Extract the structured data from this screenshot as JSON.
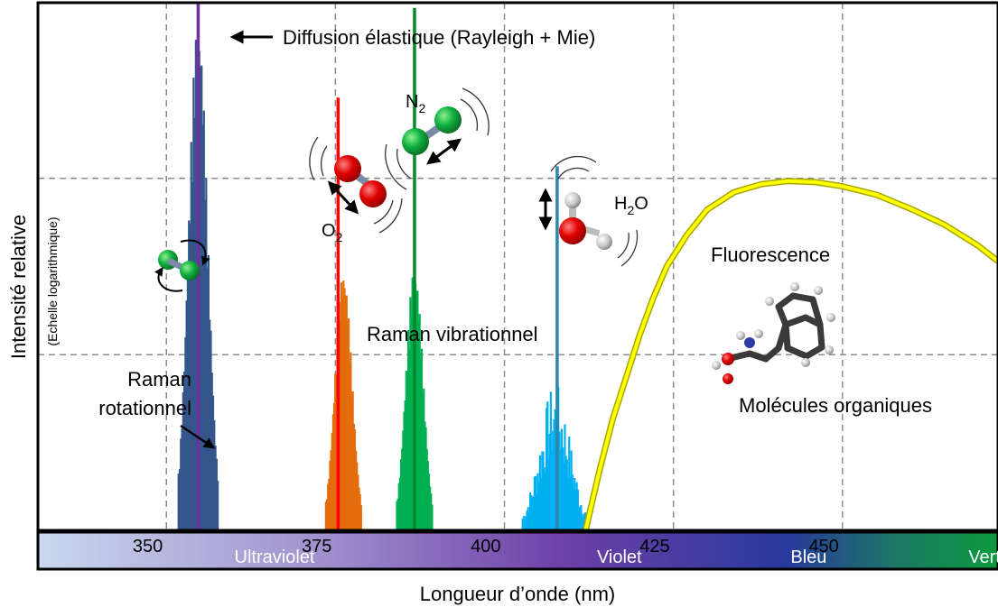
{
  "chart_data": {
    "type": "area",
    "xlabel": "Longueur d’onde (nm)",
    "ylabel": "Intensité relative",
    "ylabel_sub": "(Echelle logarithmique)",
    "x_scale": "linear",
    "y_scale": "log",
    "xlim": [
      331,
      473
    ],
    "x_ticks": [
      350,
      375,
      400,
      425,
      450
    ],
    "x_tick_labels": [
      "350",
      "375",
      "400",
      "425",
      "450"
    ],
    "grid": true,
    "spectral_bands": [
      {
        "label": "Ultraviolet",
        "x": 366
      },
      {
        "label": "Violet",
        "x": 417
      },
      {
        "label": "Bleu",
        "x": 445
      },
      {
        "label": "Vert",
        "x": 471
      }
    ],
    "band_colors": [
      "#c9d8ee",
      "#9f8fcd",
      "#6d3fa8",
      "#283a9c",
      "#1b7a63",
      "#0a9a3c"
    ],
    "series": [
      {
        "name": "Raman rotationnel",
        "type": "band",
        "center": 354.7,
        "halfwidth": 2.9,
        "peak_frac": 0.97,
        "color": "#34568a"
      },
      {
        "name": "Diffusion élastique (Rayleigh + Mie)",
        "type": "line",
        "x": 354.7,
        "peak_frac": 1.0,
        "color": "#7030a0"
      },
      {
        "name": "O2 Raman",
        "type": "band",
        "center": 376.2,
        "halfwidth": 2.6,
        "peak_frac": 0.49,
        "color": "#e46c0a"
      },
      {
        "name": "O2",
        "type": "line",
        "x": 375.4,
        "peak_frac": 0.82,
        "color": "#ff0000"
      },
      {
        "name": "N2 Raman",
        "type": "band",
        "center": 386.7,
        "halfwidth": 2.6,
        "peak_frac": 0.5,
        "color": "#00b050"
      },
      {
        "name": "N2",
        "type": "line",
        "x": 386.7,
        "peak_frac": 0.99,
        "color": "#00882a"
      },
      {
        "name": "H2O Raman",
        "type": "band",
        "center": 407.5,
        "halfwidth": 4.8,
        "peak_frac": 0.28,
        "color": "#00b0f0"
      },
      {
        "name": "H2O",
        "type": "line",
        "x": 407.8,
        "peak_frac": 0.69,
        "color": "#2e86a8"
      },
      {
        "name": "Fluorescence",
        "type": "curve",
        "x": [
          412.0,
          414,
          416,
          418,
          420,
          422,
          424,
          427,
          430,
          434,
          438,
          442,
          446,
          450,
          455,
          460,
          465,
          470,
          473
        ],
        "y_frac": [
          0.0,
          0.11,
          0.21,
          0.29,
          0.37,
          0.44,
          0.5,
          0.56,
          0.608,
          0.641,
          0.656,
          0.662,
          0.66,
          0.652,
          0.636,
          0.61,
          0.58,
          0.54,
          0.51
        ],
        "color": "#ffff00"
      }
    ],
    "annotations": {
      "elastic": "Diffusion élastique (Rayleigh + Mie)",
      "raman_rot_1": "Raman",
      "raman_rot_2": "rotationnel",
      "raman_vib": "Raman vibrationnel",
      "fluo": "Fluorescence",
      "organic": "Molécules organiques",
      "n2": "N",
      "n2_sub": "2",
      "o2": "O",
      "o2_sub": "2",
      "h2o_h": "H",
      "h2o_sub": "2",
      "h2o_o": "O"
    }
  }
}
